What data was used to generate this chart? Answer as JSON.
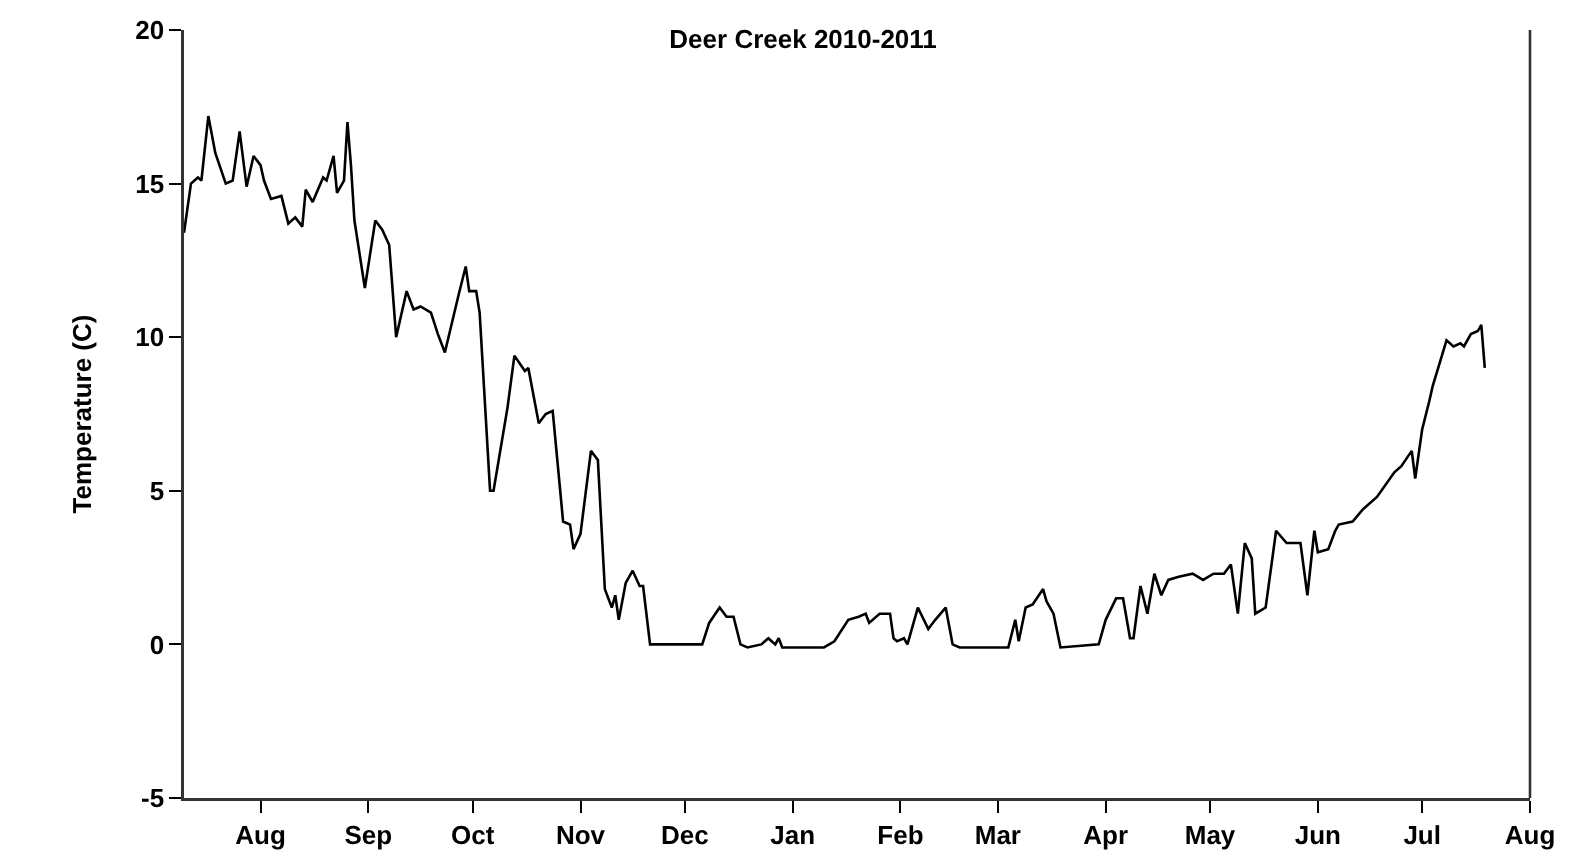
{
  "chart_data": {
    "type": "line",
    "title": "Deer Creek 2010-2011",
    "ylabel": "Temperature (C)",
    "xlim": [
      "2010-07-10",
      "2011-08-01"
    ],
    "xticks": [
      {
        "value": "2010-08-01",
        "label": "Aug"
      },
      {
        "value": "2010-09-01",
        "label": "Sep"
      },
      {
        "value": "2010-10-01",
        "label": "Oct"
      },
      {
        "value": "2010-11-01",
        "label": "Nov"
      },
      {
        "value": "2010-12-01",
        "label": "Dec"
      },
      {
        "value": "2011-01-01",
        "label": "Jan"
      },
      {
        "value": "2011-02-01",
        "label": "Feb"
      },
      {
        "value": "2011-03-01",
        "label": "Mar"
      },
      {
        "value": "2011-04-01",
        "label": "Apr"
      },
      {
        "value": "2011-05-01",
        "label": "May"
      },
      {
        "value": "2011-06-01",
        "label": "Jun"
      },
      {
        "value": "2011-07-01",
        "label": "Jul"
      },
      {
        "value": "2011-08-01",
        "label": "Aug"
      }
    ],
    "ylim": [
      -5,
      20
    ],
    "yticks": [
      -5,
      0,
      5,
      10,
      15,
      20
    ],
    "grid": false,
    "marker": "none",
    "line_style": "solid",
    "series": [
      {
        "color": "#000000",
        "x": [
          "2010-07-10",
          "2010-07-12",
          "2010-07-14",
          "2010-07-15",
          "2010-07-17",
          "2010-07-19",
          "2010-07-22",
          "2010-07-24",
          "2010-07-26",
          "2010-07-28",
          "2010-07-30",
          "2010-08-01",
          "2010-08-02",
          "2010-08-04",
          "2010-08-07",
          "2010-08-09",
          "2010-08-11",
          "2010-08-13",
          "2010-08-14",
          "2010-08-16",
          "2010-08-19",
          "2010-08-20",
          "2010-08-22",
          "2010-08-23",
          "2010-08-25",
          "2010-08-26",
          "2010-08-27",
          "2010-08-28",
          "2010-08-31",
          "2010-09-03",
          "2010-09-05",
          "2010-09-07",
          "2010-09-09",
          "2010-09-12",
          "2010-09-14",
          "2010-09-16",
          "2010-09-19",
          "2010-09-21",
          "2010-09-23",
          "2010-09-27",
          "2010-09-29",
          "2010-09-30",
          "2010-10-02",
          "2010-10-03",
          "2010-10-06",
          "2010-10-07",
          "2010-10-11",
          "2010-10-13",
          "2010-10-16",
          "2010-10-17",
          "2010-10-20",
          "2010-10-22",
          "2010-10-24",
          "2010-10-27",
          "2010-10-29",
          "2010-10-30",
          "2010-11-01",
          "2010-11-04",
          "2010-11-06",
          "2010-11-08",
          "2010-11-10",
          "2010-11-11",
          "2010-11-12",
          "2010-11-14",
          "2010-11-16",
          "2010-11-18",
          "2010-11-19",
          "2010-11-21",
          "2010-12-06",
          "2010-12-08",
          "2010-12-11",
          "2010-12-13",
          "2010-12-15",
          "2010-12-17",
          "2010-12-19",
          "2010-12-23",
          "2010-12-25",
          "2010-12-27",
          "2010-12-28",
          "2010-12-29",
          "2011-01-10",
          "2011-01-13",
          "2011-01-17",
          "2011-01-20",
          "2011-01-22",
          "2011-01-23",
          "2011-01-26",
          "2011-01-29",
          "2011-01-30",
          "2011-01-31",
          "2011-02-02",
          "2011-02-03",
          "2011-02-06",
          "2011-02-09",
          "2011-02-11",
          "2011-02-14",
          "2011-02-16",
          "2011-02-18",
          "2011-03-04",
          "2011-03-06",
          "2011-03-07",
          "2011-03-09",
          "2011-03-11",
          "2011-03-14",
          "2011-03-15",
          "2011-03-17",
          "2011-03-19",
          "2011-03-30",
          "2011-04-01",
          "2011-04-04",
          "2011-04-06",
          "2011-04-08",
          "2011-04-09",
          "2011-04-11",
          "2011-04-13",
          "2011-04-15",
          "2011-04-17",
          "2011-04-19",
          "2011-04-22",
          "2011-04-26",
          "2011-04-29",
          "2011-05-02",
          "2011-05-05",
          "2011-05-07",
          "2011-05-09",
          "2011-05-11",
          "2011-05-13",
          "2011-05-14",
          "2011-05-17",
          "2011-05-20",
          "2011-05-23",
          "2011-05-27",
          "2011-05-29",
          "2011-05-31",
          "2011-06-01",
          "2011-06-04",
          "2011-06-06",
          "2011-06-07",
          "2011-06-11",
          "2011-06-14",
          "2011-06-18",
          "2011-06-23",
          "2011-06-25",
          "2011-06-28",
          "2011-06-29",
          "2011-07-01",
          "2011-07-03",
          "2011-07-04",
          "2011-07-08",
          "2011-07-10",
          "2011-07-12",
          "2011-07-13",
          "2011-07-15",
          "2011-07-17",
          "2011-07-18",
          "2011-07-19"
        ],
        "values": [
          13.4,
          15.0,
          15.2,
          15.1,
          17.2,
          16.0,
          15.0,
          15.1,
          16.7,
          14.9,
          15.9,
          15.6,
          15.1,
          14.5,
          14.6,
          13.7,
          13.9,
          13.6,
          14.8,
          14.4,
          15.2,
          15.1,
          15.9,
          14.7,
          15.1,
          17.0,
          15.6,
          13.8,
          11.6,
          13.8,
          13.5,
          13.0,
          10.0,
          11.5,
          10.9,
          11.0,
          10.8,
          10.1,
          9.5,
          11.4,
          12.3,
          11.5,
          11.5,
          10.8,
          5.0,
          5.0,
          7.7,
          9.4,
          8.9,
          9.0,
          7.2,
          7.5,
          7.6,
          4.0,
          3.9,
          3.1,
          3.6,
          6.3,
          6.0,
          1.8,
          1.2,
          1.6,
          0.8,
          2.0,
          2.4,
          1.9,
          1.9,
          0.0,
          0.0,
          0.7,
          1.2,
          0.9,
          0.9,
          0.0,
          -0.1,
          0.0,
          0.2,
          0.0,
          0.2,
          -0.1,
          -0.1,
          0.1,
          0.8,
          0.9,
          1.0,
          0.7,
          1.0,
          1.0,
          0.2,
          0.1,
          0.2,
          0.0,
          1.2,
          0.5,
          0.8,
          1.2,
          0.0,
          -0.1,
          -0.1,
          0.8,
          0.1,
          1.2,
          1.3,
          1.8,
          1.4,
          1.0,
          -0.1,
          0.0,
          0.8,
          1.5,
          1.5,
          0.2,
          0.2,
          1.9,
          1.0,
          2.3,
          1.6,
          2.1,
          2.2,
          2.3,
          2.1,
          2.3,
          2.3,
          2.6,
          1.0,
          3.3,
          2.8,
          1.0,
          1.2,
          3.7,
          3.3,
          3.3,
          1.6,
          3.7,
          3.0,
          3.1,
          3.7,
          3.9,
          4.0,
          4.4,
          4.8,
          5.6,
          5.8,
          6.3,
          5.4,
          7.0,
          7.9,
          8.4,
          9.9,
          9.7,
          9.8,
          9.7,
          10.1,
          10.2,
          10.4,
          9.0
        ]
      }
    ]
  }
}
